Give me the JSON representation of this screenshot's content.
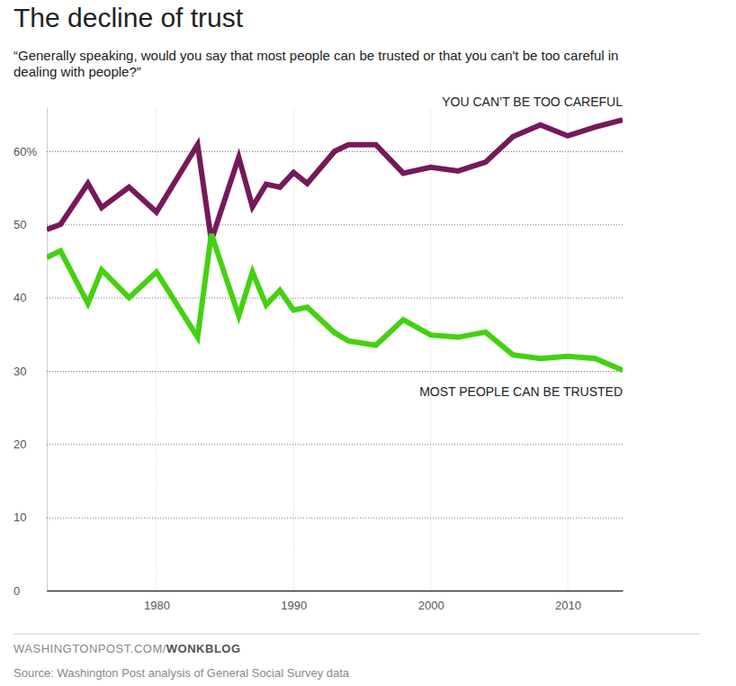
{
  "chart_data": {
    "type": "line",
    "title": "The decline of trust",
    "subtitle": [
      "“Generally speaking, would you say that most people can be trusted or that you can't be too careful in",
      "dealing with people?”"
    ],
    "credit": "WASHINGTONPOST.COM/WONKBLOG",
    "source": "Source: Washington Post analysis of General Social Survey data",
    "x": [
      1972,
      1973,
      1975,
      1976,
      1978,
      1980,
      1983,
      1984,
      1986,
      1987,
      1988,
      1989,
      1990,
      1991,
      1993,
      1994,
      1996,
      1998,
      2000,
      2002,
      2004,
      2006,
      2008,
      2010,
      2012,
      2014
    ],
    "series": [
      {
        "name": "YOU CAN’T BE TOO CAREFUL",
        "color": "#76195a",
        "values": [
          49.3,
          50,
          55.6,
          52.3,
          55.1,
          51.7,
          60.9,
          47.8,
          59.2,
          52.4,
          55.5,
          55.1,
          57.1,
          55.6,
          60,
          60.9,
          60.9,
          57,
          57.8,
          57.3,
          58.5,
          62,
          63.6,
          62.1,
          63.3,
          64.3
        ]
      },
      {
        "name": "MOST PEOPLE CAN BE TRUSTED",
        "color": "#44d111",
        "values": [
          45.5,
          46.4,
          39.2,
          43.8,
          40,
          43.5,
          34.6,
          48.7,
          37.5,
          43.5,
          39,
          41,
          38.3,
          38.7,
          35.2,
          34.1,
          33.5,
          37,
          34.9,
          34.6,
          35.3,
          32.2,
          31.7,
          32,
          31.7,
          30.1
        ]
      }
    ],
    "xlim": [
      1972,
      2014
    ],
    "xticks": [
      1980,
      1990,
      2000,
      2010
    ],
    "ylim": [
      0,
      66
    ],
    "yticks": [
      0,
      10,
      20,
      30,
      40,
      50,
      {
        "value": 60,
        "label": "60%"
      }
    ],
    "grid": true
  }
}
